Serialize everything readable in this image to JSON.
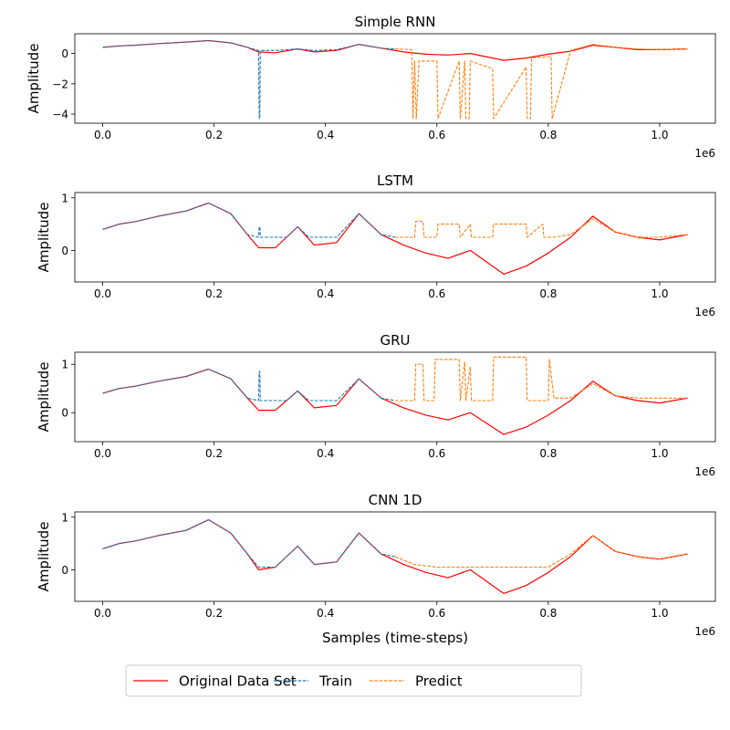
{
  "chart_data": [
    {
      "type": "line",
      "title": "Simple RNN",
      "xlabel": "",
      "ylabel": "Amplitude",
      "xlim": [
        -50000,
        1100000
      ],
      "ylim": [
        -4.6,
        1.3
      ],
      "x_offset_label": "1e6",
      "xticks": [
        0,
        200000,
        400000,
        600000,
        800000,
        1000000
      ],
      "xtick_labels": [
        "0.0",
        "0.2",
        "0.4",
        "0.6",
        "0.8",
        "1.0"
      ],
      "yticks": [
        0,
        -2,
        -4
      ],
      "ytick_labels": [
        "0",
        "−2",
        "−4"
      ],
      "grid": false,
      "series": [
        {
          "name": "Original Data Set",
          "color": "#ff0000",
          "style": "solid",
          "x": [
            0,
            30000,
            60000,
            100000,
            150000,
            190000,
            230000,
            260000,
            280000,
            310000,
            350000,
            380000,
            420000,
            460000,
            500000,
            540000,
            580000,
            620000,
            660000,
            700000,
            720000,
            760000,
            800000,
            840000,
            880000,
            920000,
            960000,
            1000000,
            1050000
          ],
          "y": [
            0.4,
            0.5,
            0.55,
            0.65,
            0.75,
            0.85,
            0.7,
            0.4,
            0.1,
            0.05,
            0.3,
            0.1,
            0.2,
            0.6,
            0.35,
            0.1,
            -0.05,
            -0.1,
            0.0,
            -0.3,
            -0.45,
            -0.3,
            -0.05,
            0.15,
            0.55,
            0.4,
            0.25,
            0.25,
            0.3
          ]
        },
        {
          "name": "Train",
          "color": "#1f77b4",
          "style": "dashed",
          "x": [
            0,
            30000,
            60000,
            100000,
            150000,
            190000,
            230000,
            260000,
            280000,
            281000,
            282000,
            283000,
            310000,
            350000,
            380000,
            420000,
            460000,
            500000,
            525000
          ],
          "y": [
            0.4,
            0.5,
            0.55,
            0.65,
            0.75,
            0.85,
            0.7,
            0.4,
            0.2,
            -4.3,
            -4.3,
            0.2,
            0.2,
            0.3,
            0.2,
            0.25,
            0.6,
            0.35,
            0.3
          ]
        },
        {
          "name": "Predict",
          "color": "#ff7f0e",
          "style": "dashed",
          "x": [
            525000,
            555000,
            557000,
            560000,
            563000,
            568000,
            570000,
            600000,
            602000,
            640000,
            642000,
            650000,
            652000,
            658000,
            660000,
            700000,
            702000,
            760000,
            762000,
            768000,
            770000,
            805000,
            807000,
            840000,
            880000,
            920000,
            960000,
            1000000,
            1050000
          ],
          "y": [
            0.3,
            0.25,
            -4.3,
            -0.5,
            -4.3,
            -0.5,
            -0.5,
            -0.5,
            -4.3,
            -0.5,
            -4.3,
            -0.5,
            -4.3,
            -4.3,
            -0.5,
            -1.0,
            -4.3,
            -0.9,
            -4.3,
            -4.3,
            -0.3,
            -0.2,
            -4.3,
            0.2,
            0.6,
            0.4,
            0.3,
            0.25,
            0.3
          ]
        }
      ]
    },
    {
      "type": "line",
      "title": "LSTM",
      "xlabel": "",
      "ylabel": "Amplitude",
      "xlim": [
        -50000,
        1100000
      ],
      "ylim": [
        -0.6,
        1.1
      ],
      "x_offset_label": "1e6",
      "xticks": [
        0,
        200000,
        400000,
        600000,
        800000,
        1000000
      ],
      "xtick_labels": [
        "0.0",
        "0.2",
        "0.4",
        "0.6",
        "0.8",
        "1.0"
      ],
      "yticks": [
        0,
        1
      ],
      "ytick_labels": [
        "0",
        "1"
      ],
      "grid": false,
      "series": [
        {
          "name": "Original Data Set",
          "color": "#ff0000",
          "style": "solid",
          "x": [
            0,
            30000,
            60000,
            100000,
            150000,
            190000,
            230000,
            260000,
            280000,
            310000,
            350000,
            380000,
            420000,
            460000,
            500000,
            540000,
            580000,
            620000,
            660000,
            700000,
            720000,
            760000,
            800000,
            840000,
            880000,
            920000,
            960000,
            1000000,
            1050000
          ],
          "y": [
            0.4,
            0.5,
            0.55,
            0.65,
            0.75,
            0.9,
            0.7,
            0.3,
            0.05,
            0.05,
            0.45,
            0.1,
            0.15,
            0.7,
            0.3,
            0.1,
            -0.05,
            -0.15,
            0.0,
            -0.3,
            -0.45,
            -0.3,
            -0.05,
            0.25,
            0.65,
            0.35,
            0.25,
            0.2,
            0.3
          ]
        },
        {
          "name": "Train",
          "color": "#1f77b4",
          "style": "dashed",
          "x": [
            0,
            30000,
            60000,
            100000,
            150000,
            190000,
            230000,
            260000,
            280000,
            281000,
            282000,
            283000,
            310000,
            330000,
            350000,
            370000,
            380000,
            420000,
            460000,
            500000,
            525000
          ],
          "y": [
            0.4,
            0.5,
            0.55,
            0.65,
            0.75,
            0.9,
            0.7,
            0.3,
            0.25,
            0.45,
            0.45,
            0.25,
            0.25,
            0.25,
            0.45,
            0.25,
            0.25,
            0.25,
            0.7,
            0.3,
            0.25
          ]
        },
        {
          "name": "Predict",
          "color": "#ff7f0e",
          "style": "dashed",
          "x": [
            525000,
            560000,
            562000,
            575000,
            577000,
            600000,
            602000,
            640000,
            642000,
            660000,
            662000,
            700000,
            702000,
            760000,
            762000,
            790000,
            792000,
            810000,
            840000,
            880000,
            920000,
            960000,
            1000000,
            1050000
          ],
          "y": [
            0.25,
            0.25,
            0.55,
            0.55,
            0.25,
            0.25,
            0.5,
            0.5,
            0.25,
            0.5,
            0.25,
            0.25,
            0.5,
            0.5,
            0.25,
            0.5,
            0.25,
            0.25,
            0.3,
            0.6,
            0.35,
            0.25,
            0.25,
            0.3
          ]
        }
      ]
    },
    {
      "type": "line",
      "title": "GRU",
      "xlabel": "",
      "ylabel": "Amplitude",
      "xlim": [
        -50000,
        1100000
      ],
      "ylim": [
        -0.6,
        1.25
      ],
      "x_offset_label": "1e6",
      "xticks": [
        0,
        200000,
        400000,
        600000,
        800000,
        1000000
      ],
      "xtick_labels": [
        "0.0",
        "0.2",
        "0.4",
        "0.6",
        "0.8",
        "1.0"
      ],
      "yticks": [
        0,
        1
      ],
      "ytick_labels": [
        "0",
        "1"
      ],
      "grid": false,
      "series": [
        {
          "name": "Original Data Set",
          "color": "#ff0000",
          "style": "solid",
          "x": [
            0,
            30000,
            60000,
            100000,
            150000,
            190000,
            230000,
            260000,
            280000,
            310000,
            350000,
            380000,
            420000,
            460000,
            500000,
            540000,
            580000,
            620000,
            660000,
            700000,
            720000,
            760000,
            800000,
            840000,
            880000,
            920000,
            960000,
            1000000,
            1050000
          ],
          "y": [
            0.4,
            0.5,
            0.55,
            0.65,
            0.75,
            0.9,
            0.7,
            0.3,
            0.05,
            0.05,
            0.45,
            0.1,
            0.15,
            0.7,
            0.3,
            0.1,
            -0.05,
            -0.15,
            0.0,
            -0.3,
            -0.45,
            -0.3,
            -0.05,
            0.25,
            0.65,
            0.35,
            0.25,
            0.2,
            0.3
          ]
        },
        {
          "name": "Train",
          "color": "#1f77b4",
          "style": "dashed",
          "x": [
            0,
            30000,
            60000,
            100000,
            150000,
            190000,
            230000,
            260000,
            280000,
            281000,
            282000,
            283000,
            310000,
            330000,
            350000,
            370000,
            380000,
            420000,
            460000,
            500000,
            525000
          ],
          "y": [
            0.4,
            0.5,
            0.55,
            0.65,
            0.75,
            0.9,
            0.7,
            0.3,
            0.25,
            0.85,
            0.85,
            0.25,
            0.25,
            0.25,
            0.45,
            0.25,
            0.25,
            0.25,
            0.7,
            0.3,
            0.25
          ]
        },
        {
          "name": "Predict",
          "color": "#ff7f0e",
          "style": "dashed",
          "x": [
            525000,
            560000,
            562000,
            575000,
            577000,
            595000,
            597000,
            640000,
            642000,
            650000,
            652000,
            660000,
            662000,
            700000,
            702000,
            760000,
            762000,
            800000,
            802000,
            810000,
            840000,
            880000,
            920000,
            960000,
            1000000,
            1050000
          ],
          "y": [
            0.25,
            0.25,
            1.0,
            1.0,
            0.25,
            0.25,
            1.1,
            1.1,
            0.25,
            1.05,
            0.25,
            0.95,
            0.25,
            0.25,
            1.15,
            1.15,
            0.25,
            0.25,
            1.1,
            0.3,
            0.3,
            0.6,
            0.35,
            0.3,
            0.3,
            0.3
          ]
        }
      ]
    },
    {
      "type": "line",
      "title": "CNN 1D",
      "xlabel": "Samples (time-steps)",
      "ylabel": "Amplitude",
      "xlim": [
        -50000,
        1100000
      ],
      "ylim": [
        -0.6,
        1.1
      ],
      "x_offset_label": "1e6",
      "xticks": [
        0,
        200000,
        400000,
        600000,
        800000,
        1000000
      ],
      "xtick_labels": [
        "0.0",
        "0.2",
        "0.4",
        "0.6",
        "0.8",
        "1.0"
      ],
      "yticks": [
        0,
        1
      ],
      "ytick_labels": [
        "0",
        "1"
      ],
      "grid": false,
      "series": [
        {
          "name": "Original Data Set",
          "color": "#ff0000",
          "style": "solid",
          "x": [
            0,
            30000,
            60000,
            100000,
            150000,
            190000,
            230000,
            260000,
            280000,
            310000,
            350000,
            380000,
            420000,
            460000,
            500000,
            540000,
            580000,
            620000,
            660000,
            700000,
            720000,
            760000,
            800000,
            840000,
            880000,
            920000,
            960000,
            1000000,
            1050000
          ],
          "y": [
            0.4,
            0.5,
            0.55,
            0.65,
            0.75,
            0.95,
            0.7,
            0.3,
            0.0,
            0.05,
            0.45,
            0.1,
            0.15,
            0.7,
            0.3,
            0.1,
            -0.05,
            -0.15,
            0.0,
            -0.3,
            -0.45,
            -0.3,
            -0.05,
            0.25,
            0.65,
            0.35,
            0.25,
            0.2,
            0.3
          ]
        },
        {
          "name": "Train",
          "color": "#1f77b4",
          "style": "dashed",
          "x": [
            0,
            30000,
            60000,
            100000,
            150000,
            190000,
            230000,
            260000,
            280000,
            310000,
            350000,
            380000,
            420000,
            460000,
            500000,
            525000
          ],
          "y": [
            0.4,
            0.5,
            0.55,
            0.65,
            0.75,
            0.95,
            0.7,
            0.3,
            0.05,
            0.05,
            0.45,
            0.1,
            0.15,
            0.7,
            0.3,
            0.25
          ]
        },
        {
          "name": "Predict",
          "color": "#ff7f0e",
          "style": "dashed",
          "x": [
            525000,
            560000,
            600000,
            640000,
            680000,
            720000,
            760000,
            800000,
            840000,
            880000,
            920000,
            960000,
            1000000,
            1050000
          ],
          "y": [
            0.25,
            0.1,
            0.05,
            0.05,
            0.05,
            0.05,
            0.05,
            0.05,
            0.3,
            0.65,
            0.35,
            0.25,
            0.2,
            0.3
          ]
        }
      ]
    }
  ],
  "legend": {
    "items": [
      {
        "label": "Original Data Set",
        "color": "#ff0000",
        "style": "solid"
      },
      {
        "label": "Train",
        "color": "#1f77b4",
        "style": "dashed"
      },
      {
        "label": "Predict",
        "color": "#ff7f0e",
        "style": "dashed"
      }
    ],
    "placement": "bottom-center"
  }
}
